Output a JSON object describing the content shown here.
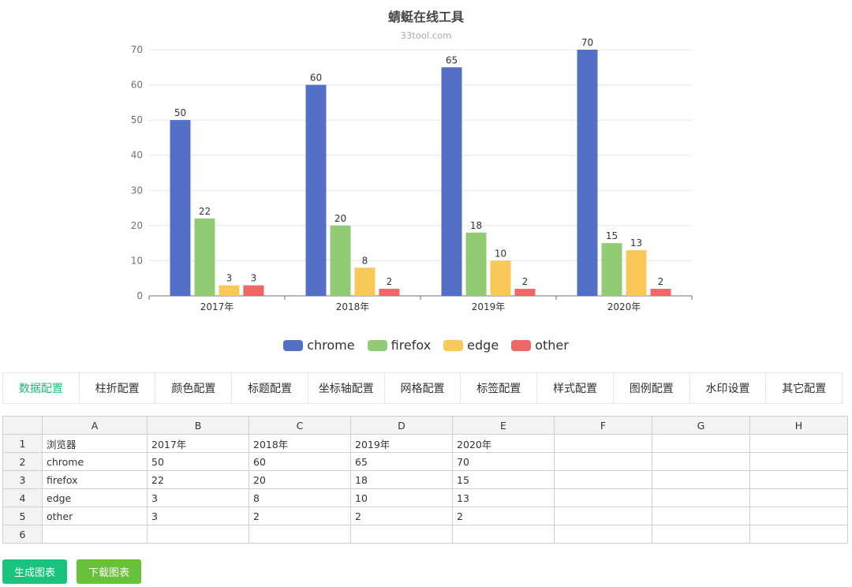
{
  "chart_data": {
    "type": "bar",
    "title": "蜻蜓在线工具",
    "subtitle": "33tool.com",
    "categories": [
      "2017年",
      "2018年",
      "2019年",
      "2020年"
    ],
    "series": [
      {
        "name": "chrome",
        "values": [
          50,
          60,
          65,
          70
        ],
        "color": "#5470c6"
      },
      {
        "name": "firefox",
        "values": [
          22,
          20,
          18,
          15
        ],
        "color": "#91cc75"
      },
      {
        "name": "edge",
        "values": [
          3,
          8,
          10,
          13
        ],
        "color": "#fac858"
      },
      {
        "name": "other",
        "values": [
          3,
          2,
          2,
          2
        ],
        "color": "#ee6666"
      }
    ],
    "y_ticks": [
      "0",
      "10",
      "20",
      "30",
      "40",
      "50",
      "60",
      "70"
    ],
    "ylim": [
      0,
      70
    ],
    "grid": true,
    "legend_position": "bottom"
  },
  "tabs": [
    {
      "label": "数据配置",
      "active": true
    },
    {
      "label": "柱折配置"
    },
    {
      "label": "颜色配置"
    },
    {
      "label": "标题配置"
    },
    {
      "label": "坐标轴配置"
    },
    {
      "label": "网格配置"
    },
    {
      "label": "标签配置"
    },
    {
      "label": "样式配置"
    },
    {
      "label": "图例配置"
    },
    {
      "label": "水印设置"
    },
    {
      "label": "其它配置"
    }
  ],
  "spreadsheet": {
    "columns": [
      "A",
      "B",
      "C",
      "D",
      "E",
      "F",
      "G",
      "H"
    ],
    "rows": [
      {
        "num": "1",
        "cells": [
          "浏览器",
          "2017年",
          "2018年",
          "2019年",
          "2020年",
          "",
          "",
          ""
        ]
      },
      {
        "num": "2",
        "cells": [
          "chrome",
          "50",
          "60",
          "65",
          "70",
          "",
          "",
          ""
        ]
      },
      {
        "num": "3",
        "cells": [
          "firefox",
          "22",
          "20",
          "18",
          "15",
          "",
          "",
          ""
        ]
      },
      {
        "num": "4",
        "cells": [
          "edge",
          "3",
          "8",
          "10",
          "13",
          "",
          "",
          ""
        ]
      },
      {
        "num": "5",
        "cells": [
          "other",
          "3",
          "2",
          "2",
          "2",
          "",
          "",
          ""
        ]
      },
      {
        "num": "6",
        "cells": [
          "",
          "",
          "",
          "",
          "",
          "",
          "",
          ""
        ]
      }
    ]
  },
  "buttons": {
    "generate_label": "生成图表",
    "download_label": "下载图表"
  },
  "colors": {
    "accent": "#1fba78",
    "generate_button": "#19c37d",
    "download_button": "#67c23a"
  }
}
